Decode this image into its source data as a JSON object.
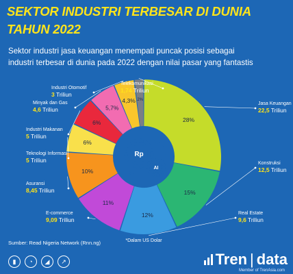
{
  "header": {
    "title_line1": "SEKTOR INDUSTRI TERBESAR DI DUNIA",
    "title_line2": "TAHUN 2022",
    "subtitle_line1": "Sektor industri jasa keuangan menempati puncak posisi sebagai",
    "subtitle_line2": "industri terbesar di dunia pada 2022 dengan nilai pasar yang fantastis"
  },
  "chart_data": {
    "type": "pie",
    "note": "*Dalam US Dolar",
    "slices": [
      {
        "name": "Jasa Keuangan",
        "value": 22.5,
        "value_label": "22,5 Triliun",
        "pct": 28,
        "pct_label": "28%",
        "color": "#c5dc2a"
      },
      {
        "name": "Konstruksi",
        "value": 12.5,
        "value_label": "12,5 Triliun",
        "pct": 15,
        "pct_label": "15%",
        "color": "#2bb673"
      },
      {
        "name": "Real Estate",
        "value": 9.6,
        "value_label": "9,6 Triliun",
        "pct": 12,
        "pct_label": "12%",
        "color": "#3a9be0"
      },
      {
        "name": "E-commerce",
        "value": 9.09,
        "value_label": "9,09 Triliun",
        "pct": 11,
        "pct_label": "11%",
        "color": "#c14ad8"
      },
      {
        "name": "Asuransi",
        "value": 8.45,
        "value_label": "8,45 Triliun",
        "pct": 10,
        "pct_label": "10%",
        "color": "#f7941d"
      },
      {
        "name": "Teknologi Informasi",
        "value": 5,
        "value_label": "5 Triliun",
        "pct": 6,
        "pct_label": "6%",
        "color": "#f9e04b"
      },
      {
        "name": "Industri Makanan",
        "value": 5,
        "value_label": "5 Triliun",
        "pct": 6,
        "pct_label": "6%",
        "color": "#e9283c"
      },
      {
        "name": "Minyak dan Gas",
        "value": 4.6,
        "value_label": "4,6 Triliun",
        "pct": 5.7,
        "pct_label": "5,7%",
        "color": "#f26cb1"
      },
      {
        "name": "Industri Otomotif",
        "value": 3,
        "value_label": "3 Triliun",
        "pct": 4.3,
        "pct_label": "4,3%",
        "color": "#f9c62b"
      },
      {
        "name": "Telekomunikasi",
        "value": 1.74,
        "value_label": "1,74 Triliun",
        "pct": 2,
        "pct_label": "2%",
        "color": "#7b7f86"
      }
    ]
  },
  "footer": {
    "source": "Sumber: Read Nigeria Network (Rnn.ng)",
    "brand_left": "Tren",
    "brand_sep": "|",
    "brand_right": "data",
    "member": "Member of TrenAsia.com"
  },
  "colors": {
    "background": "#1d67b5",
    "title": "#ffe41a",
    "label_value": "#ffe41a"
  },
  "icons": [
    "bar-chart-icon",
    "pie-chart-icon",
    "area-chart-icon",
    "trendline-icon"
  ],
  "center_icons": [
    "rp-gear-icon",
    "ai-gear-icon"
  ]
}
